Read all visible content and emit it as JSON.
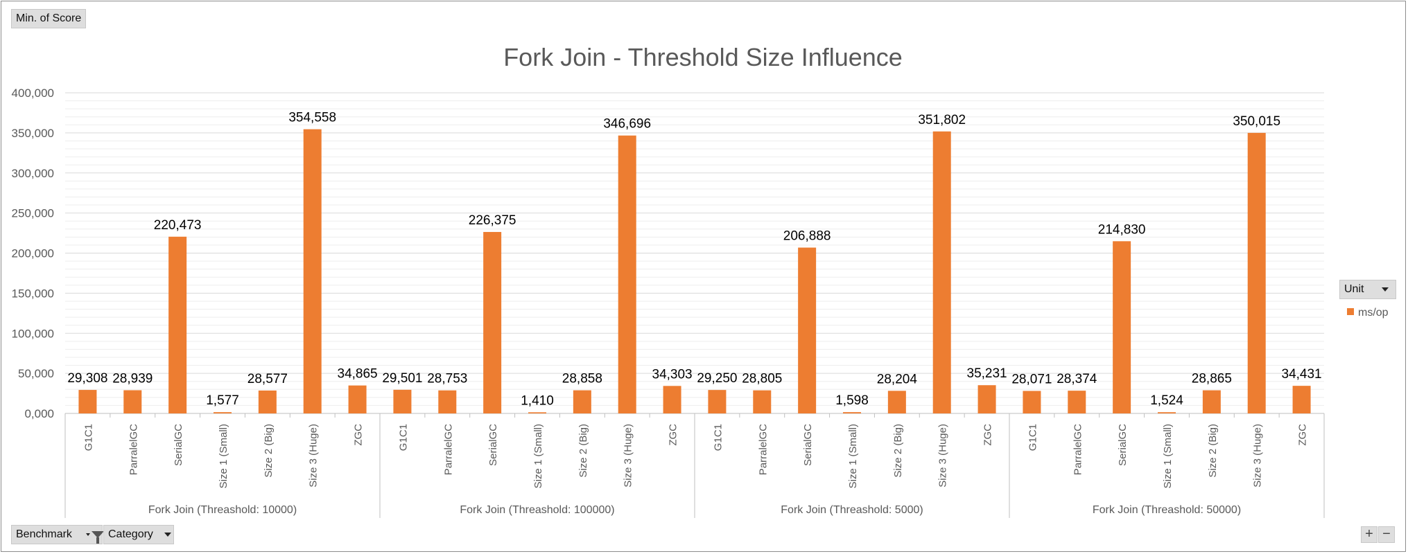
{
  "field_buttons": {
    "values_field": "Min. of Score",
    "legend_field": "Unit",
    "axis_field_1": "Benchmark",
    "axis_field_2": "Category"
  },
  "zoom": {
    "plus": "+",
    "minus": "−"
  },
  "colors": {
    "bar": "#ED7D31",
    "grid": "#d9d9d9",
    "minor_grid": "#ededed",
    "axis_text": "#595959"
  },
  "chart_data": {
    "type": "bar",
    "title": "Fork Join - Threshold Size Influence",
    "ylim": [
      0,
      400000
    ],
    "yticks": [
      "0,000",
      "50,000",
      "100,000",
      "150,000",
      "200,000",
      "250,000",
      "300,000",
      "350,000",
      "400,000"
    ],
    "legend": {
      "placement": "right",
      "entries": [
        {
          "name": "ms/op",
          "color": "#ED7D31"
        }
      ]
    },
    "categories": [
      "G1C1",
      "ParralelGC",
      "SerialGC",
      "Size 1 (Small)",
      "Size 2 (Big)",
      "Size 3 (Huge)",
      "ZGC"
    ],
    "groups": [
      {
        "name": "Fork Join (Threashold: 10000)",
        "values": [
          29308,
          28939,
          220473,
          1577,
          28577,
          354558,
          34865
        ],
        "labels": [
          "29,308",
          "28,939",
          "220,473",
          "1,577",
          "28,577",
          "354,558",
          "34,865"
        ]
      },
      {
        "name": "Fork Join (Threashold: 100000)",
        "values": [
          29501,
          28753,
          226375,
          1410,
          28858,
          346696,
          34303
        ],
        "labels": [
          "29,501",
          "28,753",
          "226,375",
          "1,410",
          "28,858",
          "346,696",
          "34,303"
        ]
      },
      {
        "name": "Fork Join (Threashold: 5000)",
        "values": [
          29250,
          28805,
          206888,
          1598,
          28204,
          351802,
          35231
        ],
        "labels": [
          "29,250",
          "28,805",
          "206,888",
          "1,598",
          "28,204",
          "351,802",
          "35,231"
        ]
      },
      {
        "name": "Fork Join (Threashold: 50000)",
        "values": [
          28071,
          28374,
          214830,
          1524,
          28865,
          350015,
          34431
        ],
        "labels": [
          "28,071",
          "28,374",
          "214,830",
          "1,524",
          "28,865",
          "350,015",
          "34,431"
        ]
      }
    ]
  }
}
